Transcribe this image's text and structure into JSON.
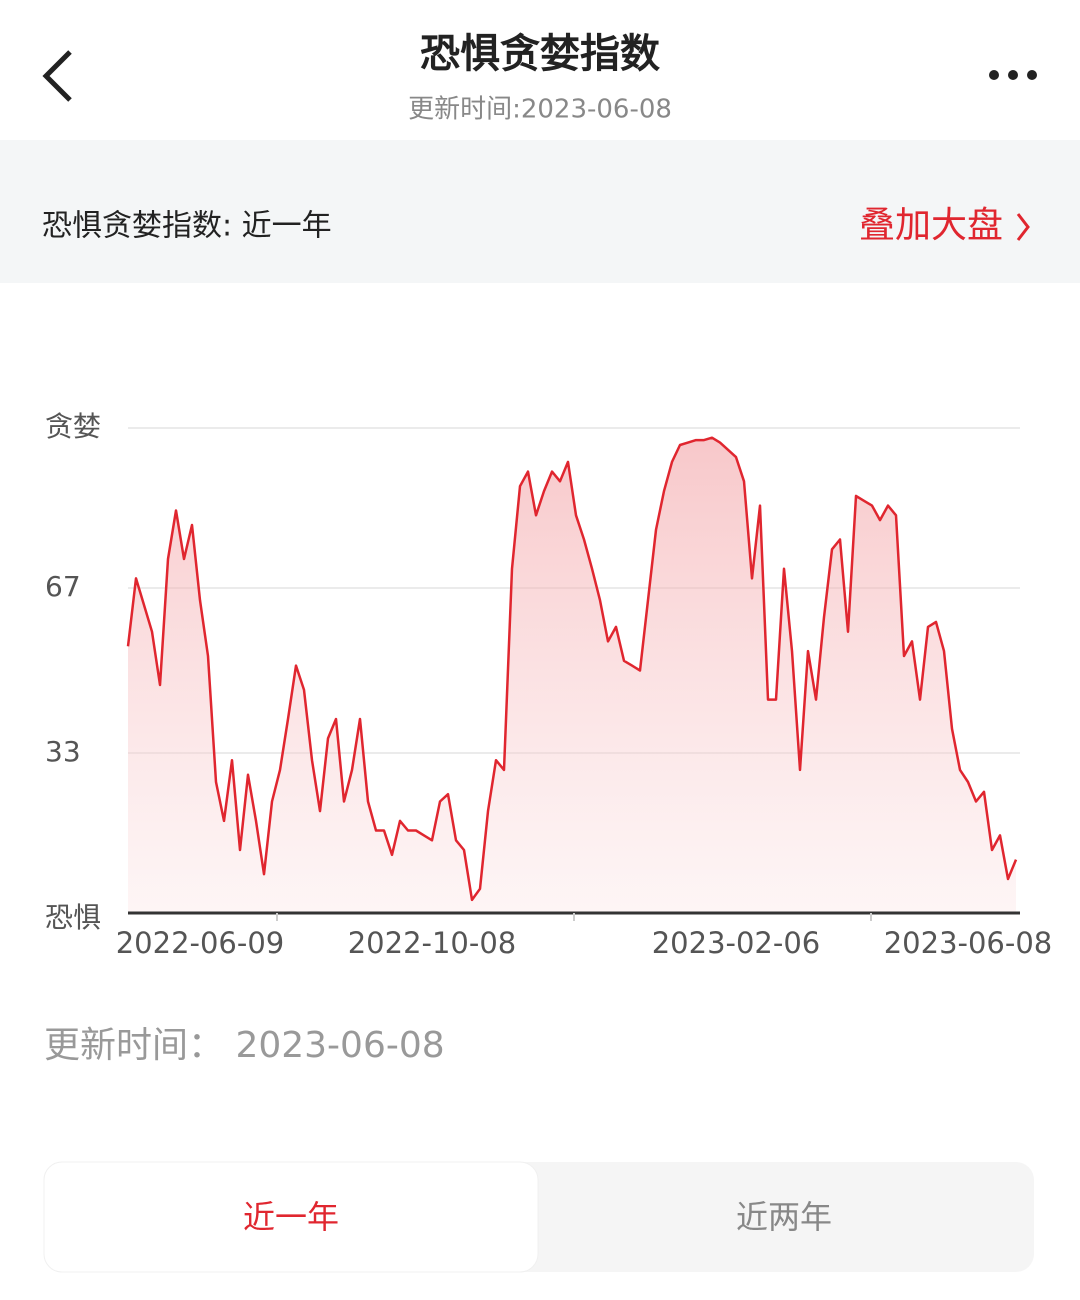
{
  "header": {
    "title": "恐惧贪婪指数",
    "subtitle": "更新时间:2023-06-08"
  },
  "section": {
    "label": "恐惧贪婪指数: 近一年",
    "action": "叠加大盘"
  },
  "chart_data": {
    "type": "line",
    "categories": [
      null,
      null,
      null,
      null,
      null,
      null,
      null,
      null,
      null,
      "2022-06-09",
      null,
      null,
      null,
      null,
      null,
      null,
      null,
      null,
      null,
      null,
      null,
      null,
      null,
      null,
      null,
      null,
      null,
      null,
      null,
      null,
      null,
      null,
      null,
      null,
      null,
      null,
      null,
      null,
      "2022-10-08",
      null,
      null,
      null,
      null,
      null,
      null,
      null,
      null,
      null,
      null,
      null,
      null,
      null,
      null,
      null,
      null,
      null,
      null,
      null,
      null,
      null,
      null,
      null,
      null,
      null,
      null,
      null,
      null,
      null,
      null,
      null,
      null,
      null,
      null,
      null,
      null,
      null,
      "2023-02-06",
      null,
      null,
      null,
      null,
      null,
      null,
      null,
      null,
      null,
      null,
      null,
      null,
      null,
      null,
      null,
      null,
      null,
      null,
      null,
      null,
      null,
      null,
      null,
      null,
      null,
      null,
      null,
      null,
      "2023-06-08",
      null,
      null,
      null,
      null,
      null,
      null
    ],
    "series": [
      {
        "name": "恐惧贪婪指数",
        "color": "#e0262f",
        "values": [
          55,
          69,
          63.5,
          58,
          47,
          73,
          83,
          73,
          80,
          64.5,
          53,
          27,
          19,
          31.5,
          13,
          28.5,
          19,
          8,
          23,
          29.5,
          40,
          51,
          46,
          31.5,
          21,
          36,
          40,
          23,
          29.5,
          40,
          23,
          17,
          17,
          12,
          19,
          17,
          17,
          16,
          15,
          23,
          24.5,
          15,
          13,
          2.7,
          5,
          21,
          31.5,
          29.5,
          71,
          88,
          91,
          82,
          87,
          91,
          89,
          93,
          82,
          77,
          71,
          64.5,
          56,
          59,
          52,
          51,
          50,
          64.5,
          79,
          87,
          93,
          96.5,
          97,
          97.5,
          97.5,
          98,
          97,
          95.5,
          94,
          89,
          69,
          84,
          44,
          44,
          71,
          54,
          29.5,
          54,
          44,
          61,
          75,
          77,
          58,
          86,
          85,
          84,
          81,
          84,
          82,
          53,
          56,
          44,
          59,
          60,
          54,
          38,
          29.5,
          27,
          23,
          25,
          13,
          16,
          7,
          11
        ]
      }
    ],
    "ylim": [
      0,
      100
    ],
    "yticks": [
      {
        "value": 0,
        "label": "恐惧"
      },
      33,
      67,
      {
        "value": 100,
        "label": "贪婪"
      }
    ],
    "grid": true
  },
  "footer": {
    "updated": "更新时间： 2023-06-08"
  },
  "tabs": [
    "近一年",
    "近两年"
  ]
}
